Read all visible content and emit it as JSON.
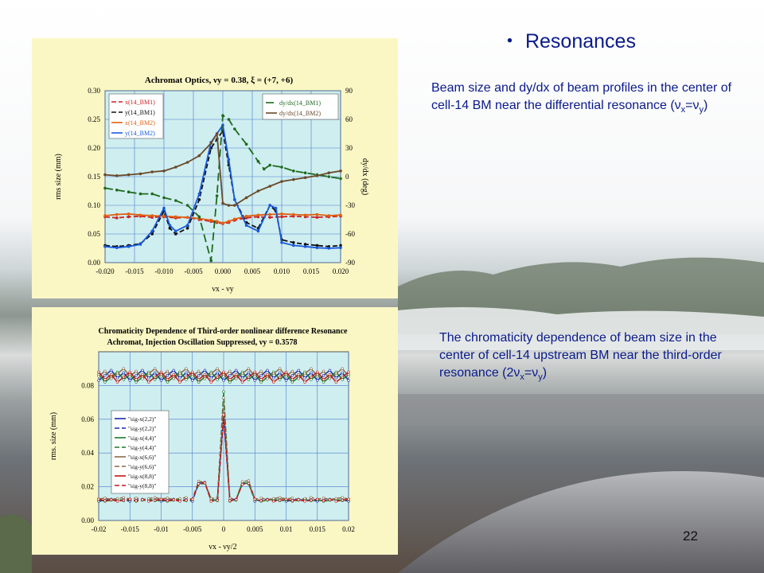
{
  "slide": {
    "title": "Resonances",
    "bullet": "・",
    "note1_text": "Beam size and dy/dx of beam profiles in the center of cell-14 BM near the differential resonance (",
    "note1_sym_a": "ν",
    "note1_sub_a": "x",
    "note1_eq": "=",
    "note1_sym_b": "ν",
    "note1_sub_b": "y",
    "note1_close": ")",
    "note2_text": "The chromaticity dependence of beam size in the center of cell-14 upstream BM near the third-order resonance (2",
    "note2_sym_a": "ν",
    "note2_sub_a": "x",
    "note2_eq": "=",
    "note2_sym_b": "ν",
    "note2_sub_b": "y",
    "note2_close": ")",
    "page_number": "22"
  },
  "colors": {
    "panel_bg": "#fbf7c4",
    "plot_bg": "#cfeef0",
    "grid": "#4a7acc",
    "text_blue": "#0a1a8a"
  },
  "chart_data": [
    {
      "type": "line",
      "title": "Achromat Optics, νy = 0.38, ξ = (+7, +6)",
      "xlabel": "νx - νy",
      "ylabel": "rms size (mm)",
      "y2label": "dy/dx (deg)",
      "xlim": [
        -0.02,
        0.02
      ],
      "ylim": [
        0,
        0.3
      ],
      "y2lim": [
        -90,
        90
      ],
      "xticks": [
        "-0.020",
        "-0.015",
        "-0.010",
        "-0.005",
        "0.000",
        "0.005",
        "0.010",
        "0.015",
        "0.020"
      ],
      "yticks": [
        "0.00",
        "0.05",
        "0.10",
        "0.15",
        "0.20",
        "0.25",
        "0.30"
      ],
      "y2ticks": [
        "-90",
        "-60",
        "-30",
        "0",
        "30",
        "60",
        "90"
      ],
      "grid": true,
      "legend_left": "top-left",
      "legend_right": "top-right",
      "series": [
        {
          "name": "x(14_BM1)",
          "axis": "left",
          "color": "#cc2222",
          "dash": "6,3",
          "x": [
            -0.02,
            -0.018,
            -0.016,
            -0.014,
            -0.012,
            -0.01,
            -0.008,
            -0.006,
            -0.004,
            -0.002,
            -0.001,
            0,
            0.001,
            0.002,
            0.004,
            0.006,
            0.008,
            0.01,
            0.012,
            0.014,
            0.016,
            0.018,
            0.02
          ],
          "y": [
            0.08,
            0.078,
            0.08,
            0.081,
            0.079,
            0.08,
            0.078,
            0.079,
            0.075,
            0.072,
            0.07,
            0.068,
            0.07,
            0.074,
            0.078,
            0.08,
            0.079,
            0.08,
            0.081,
            0.08,
            0.079,
            0.08,
            0.081
          ]
        },
        {
          "name": "y(14_BM1)",
          "axis": "left",
          "color": "#111111",
          "dash": "6,3",
          "x": [
            -0.02,
            -0.018,
            -0.016,
            -0.014,
            -0.012,
            -0.01,
            -0.009,
            -0.008,
            -0.006,
            -0.004,
            -0.002,
            -0.001,
            0,
            0.001,
            0.002,
            0.004,
            0.006,
            0.008,
            0.009,
            0.01,
            0.012,
            0.014,
            0.016,
            0.018,
            0.02
          ],
          "y": [
            0.03,
            0.028,
            0.03,
            0.033,
            0.05,
            0.09,
            0.06,
            0.05,
            0.06,
            0.11,
            0.2,
            0.215,
            0.23,
            0.17,
            0.11,
            0.07,
            0.06,
            0.1,
            0.09,
            0.04,
            0.035,
            0.032,
            0.03,
            0.028,
            0.03
          ]
        },
        {
          "name": "x(14_BM2)",
          "axis": "left",
          "color": "#e06010",
          "dash": "",
          "x": [
            -0.02,
            -0.018,
            -0.016,
            -0.014,
            -0.012,
            -0.01,
            -0.008,
            -0.006,
            -0.004,
            -0.002,
            -0.001,
            0,
            0.001,
            0.002,
            0.004,
            0.006,
            0.008,
            0.01,
            0.012,
            0.014,
            0.016,
            0.018,
            0.02
          ],
          "y": [
            0.082,
            0.084,
            0.085,
            0.083,
            0.082,
            0.081,
            0.08,
            0.079,
            0.077,
            0.074,
            0.072,
            0.069,
            0.072,
            0.076,
            0.081,
            0.083,
            0.084,
            0.085,
            0.084,
            0.083,
            0.084,
            0.082,
            0.083
          ]
        },
        {
          "name": "y(14_BM2)",
          "axis": "left",
          "color": "#1a5adc",
          "dash": "",
          "x": [
            -0.02,
            -0.018,
            -0.016,
            -0.014,
            -0.012,
            -0.01,
            -0.009,
            -0.008,
            -0.006,
            -0.004,
            -0.002,
            -0.001,
            0,
            0.001,
            0.002,
            0.004,
            0.006,
            0.008,
            0.009,
            0.01,
            0.012,
            0.014,
            0.016,
            0.018,
            0.02
          ],
          "y": [
            0.028,
            0.026,
            0.028,
            0.032,
            0.055,
            0.095,
            0.065,
            0.055,
            0.065,
            0.12,
            0.21,
            0.225,
            0.24,
            0.18,
            0.11,
            0.065,
            0.055,
            0.1,
            0.095,
            0.035,
            0.03,
            0.028,
            0.026,
            0.025,
            0.026
          ]
        },
        {
          "name": "dy/dx(14_BM1)",
          "axis": "right",
          "color": "#1e6a1e",
          "dash": "10,5",
          "x": [
            -0.02,
            -0.018,
            -0.016,
            -0.014,
            -0.012,
            -0.01,
            -0.008,
            -0.006,
            -0.004,
            -0.002,
            -0.001,
            0,
            0.001,
            0.002,
            0.004,
            0.006,
            0.007,
            0.008,
            0.01,
            0.012,
            0.014,
            0.016,
            0.018,
            0.02
          ],
          "y": [
            -12,
            -14,
            -16,
            -18,
            -18,
            -22,
            -25,
            -30,
            -42,
            -88,
            -20,
            64,
            60,
            50,
            34,
            16,
            8,
            12,
            10,
            6,
            4,
            2,
            0,
            -2
          ]
        },
        {
          "name": "dy/dx(14_BM2)",
          "axis": "right",
          "color": "#6a4a2a",
          "dash": "",
          "x": [
            -0.02,
            -0.018,
            -0.016,
            -0.014,
            -0.012,
            -0.01,
            -0.008,
            -0.006,
            -0.004,
            -0.002,
            -0.001,
            0,
            0.001,
            0.002,
            0.004,
            0.006,
            0.008,
            0.01,
            0.012,
            0.014,
            0.016,
            0.018,
            0.02
          ],
          "y": [
            2,
            1,
            2,
            3,
            5,
            6,
            10,
            15,
            22,
            35,
            45,
            -28,
            -30,
            -30,
            -22,
            -15,
            -10,
            -5,
            -3,
            -1,
            1,
            4,
            6
          ]
        }
      ]
    },
    {
      "type": "line",
      "title": "Chromaticity Dependence of Third-order nonlinear difference  Resonance",
      "subtitle": "Achromat, Injection Oscillation Suppressed, νy = 0.3578",
      "xlabel": "νx - νy/2",
      "ylabel": "rms. size (mm)",
      "xlim": [
        -0.02,
        0.02
      ],
      "ylim": [
        0,
        0.1
      ],
      "xticks": [
        "-0.02",
        "-0.015",
        "-0.01",
        "-0.005",
        "0",
        "0.005",
        "0.01",
        "0.015",
        "0.02"
      ],
      "yticks": [
        "0.00",
        "0.02",
        "0.04",
        "0.06",
        "0.08"
      ],
      "grid": true,
      "legend": "bottom-left",
      "series": [
        {
          "name": "\"sig-x(2,2)\"",
          "color": "#1a2aa8",
          "dash": "",
          "group": "x",
          "amp": 0.075,
          "base": 0.086,
          "phase": 0
        },
        {
          "name": "\"sig-y(2,2)\"",
          "color": "#1a2aa8",
          "dash": "6,3",
          "group": "y",
          "amp": 0.05,
          "base": 0.012,
          "phase": 0
        },
        {
          "name": "\"sig-x(4,4)\"",
          "color": "#1a7a2a",
          "dash": "",
          "group": "x",
          "amp": 0.072,
          "base": 0.085,
          "phase": 1
        },
        {
          "name": "\"sig-y(4,4)\"",
          "color": "#1a7a2a",
          "dash": "6,3",
          "group": "y",
          "amp": 0.064,
          "base": 0.012,
          "phase": 1
        },
        {
          "name": "\"sig-x(6,6)\"",
          "color": "#8a6a4a",
          "dash": "",
          "group": "x",
          "amp": 0.07,
          "base": 0.087,
          "phase": 2
        },
        {
          "name": "\"sig-y(6,6)\"",
          "color": "#8a6a4a",
          "dash": "6,3",
          "group": "y",
          "amp": 0.06,
          "base": 0.013,
          "phase": 2
        },
        {
          "name": "\"sig-x(8,8)\"",
          "color": "#c01818",
          "dash": "",
          "group": "x",
          "amp": 0.07,
          "base": 0.085,
          "phase": 3
        },
        {
          "name": "\"sig-y(8,8)\"",
          "color": "#c01818",
          "dash": "6,3",
          "group": "y",
          "amp": 0.05,
          "base": 0.012,
          "phase": 3
        }
      ]
    }
  ]
}
